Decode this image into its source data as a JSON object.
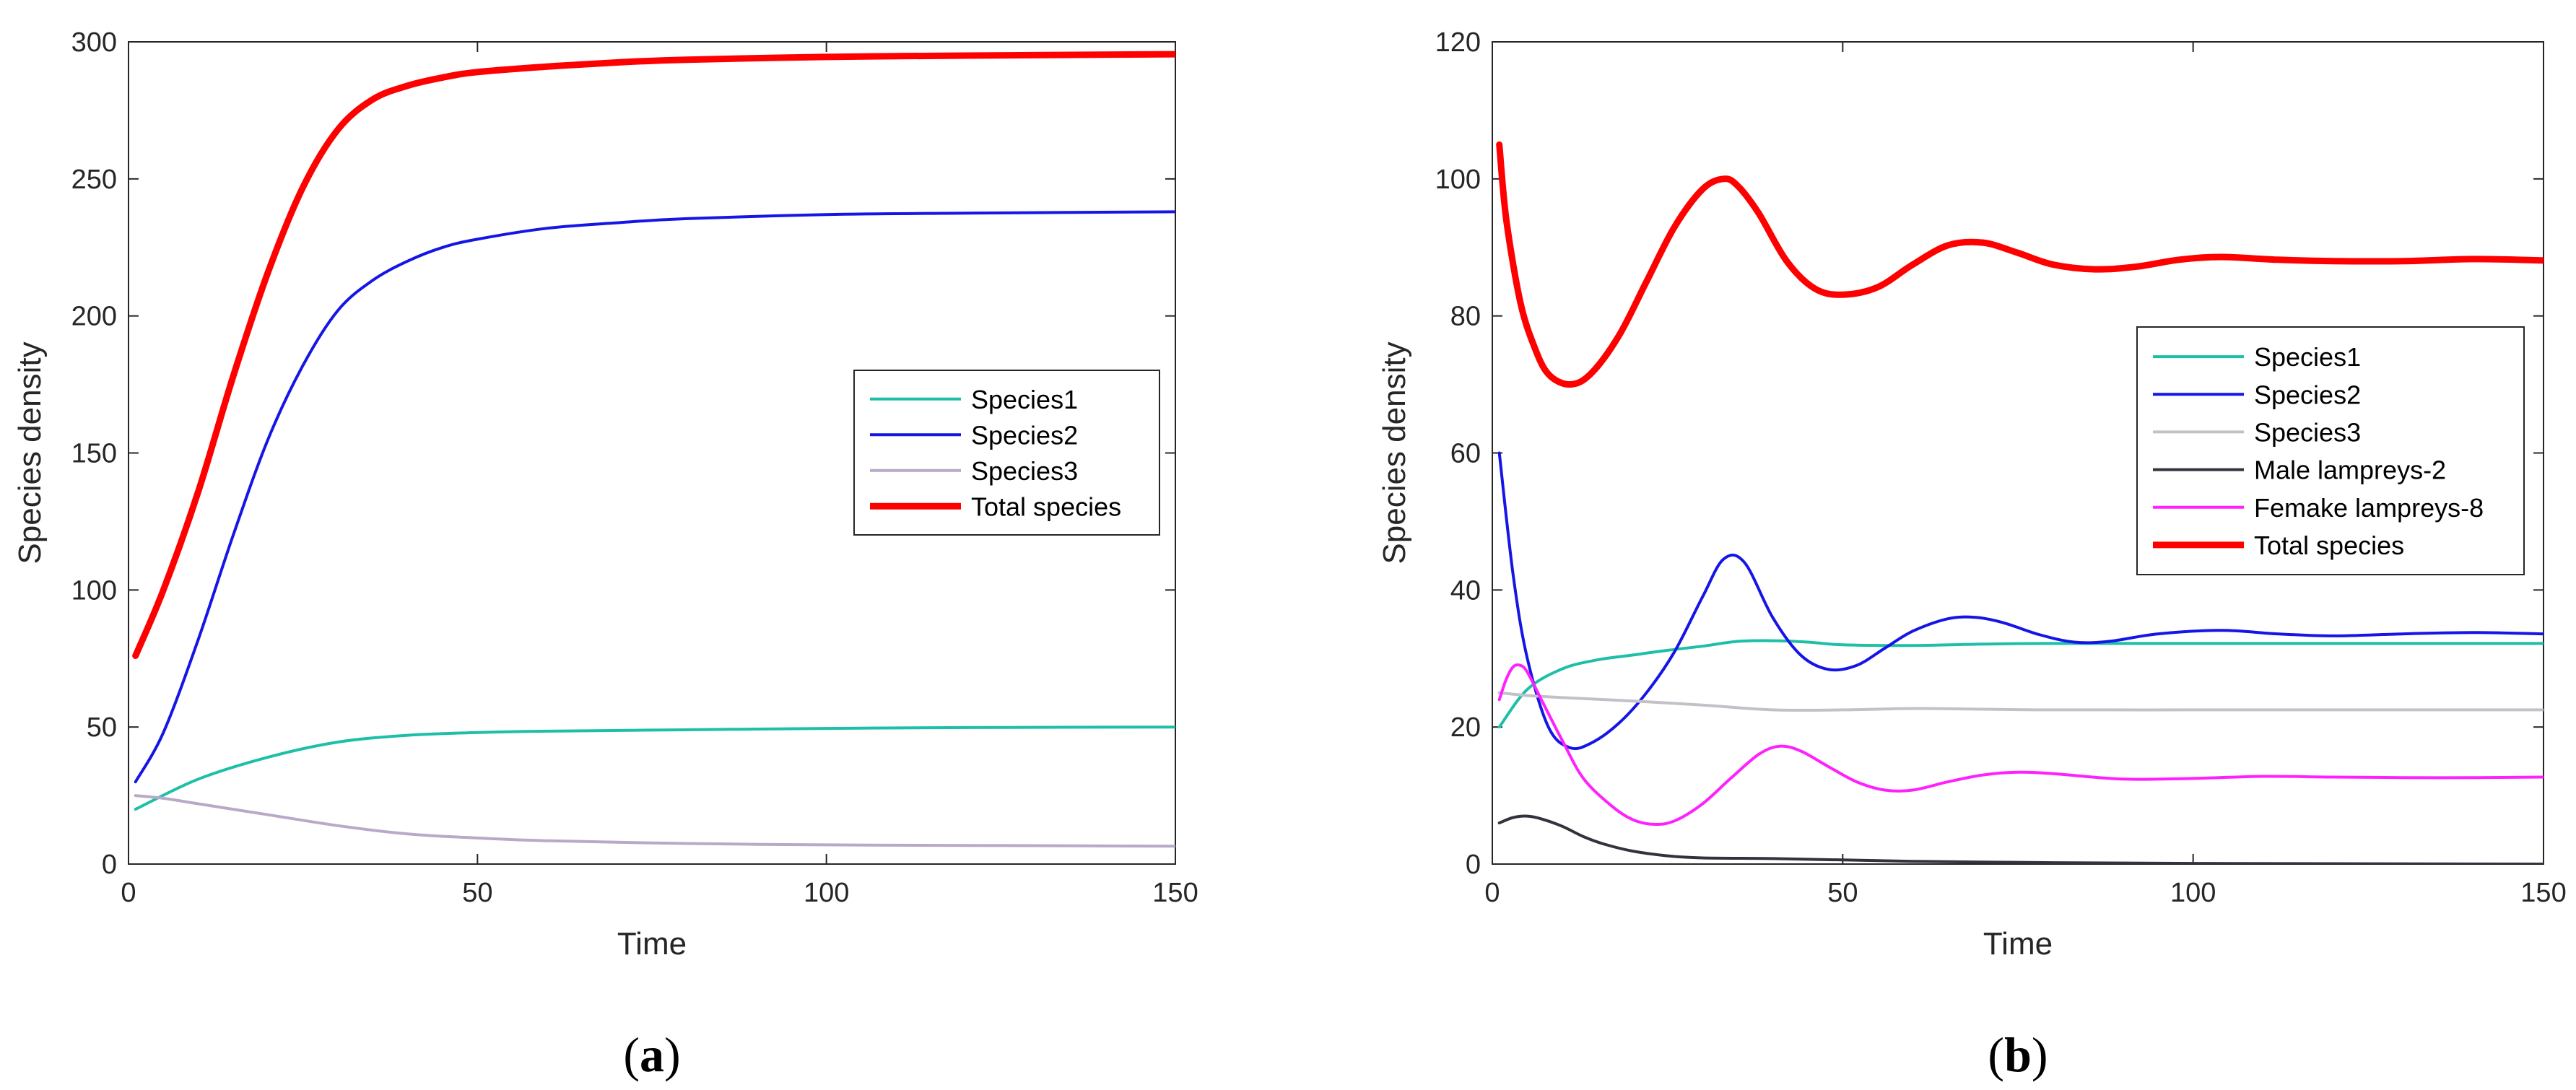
{
  "chart_data": [
    {
      "type": "line",
      "panel": "a",
      "caption": {
        "open": "(",
        "letter": "a",
        "close": ")"
      },
      "xlabel": "Time",
      "ylabel": "Species density",
      "xlim": [
        0,
        150
      ],
      "ylim": [
        0,
        300
      ],
      "xticks": [
        0,
        50,
        100,
        150
      ],
      "yticks": [
        0,
        50,
        100,
        150,
        200,
        250,
        300
      ],
      "legend_position": "right-middle",
      "series": [
        {
          "name": "Species1",
          "color": "#1dbfa8",
          "width": "thin",
          "x": [
            1,
            10,
            20,
            30,
            40,
            50,
            60,
            80,
            100,
            120,
            150
          ],
          "y": [
            20,
            31,
            39,
            44.5,
            47,
            48,
            48.5,
            49,
            49.5,
            49.8,
            50
          ]
        },
        {
          "name": "Species2",
          "color": "#1515e6",
          "width": "thin",
          "x": [
            1,
            5,
            10,
            15,
            20,
            25,
            30,
            35,
            40,
            45,
            50,
            60,
            70,
            80,
            100,
            120,
            150
          ],
          "y": [
            30,
            48,
            82,
            120,
            155,
            182,
            202,
            213,
            220,
            225,
            228,
            232,
            234,
            235.5,
            237,
            237.5,
            238
          ]
        },
        {
          "name": "Species3",
          "color": "#b9a9c9",
          "width": "thin",
          "x": [
            1,
            5,
            10,
            20,
            30,
            40,
            50,
            60,
            80,
            100,
            120,
            150
          ],
          "y": [
            25,
            24,
            22,
            18,
            14,
            11,
            9.5,
            8.5,
            7.5,
            7,
            6.8,
            6.5
          ]
        },
        {
          "name": "Total species",
          "color": "#ff0000",
          "width": "thick",
          "x": [
            1,
            5,
            10,
            15,
            20,
            25,
            30,
            35,
            40,
            45,
            50,
            60,
            70,
            80,
            100,
            120,
            150
          ],
          "y": [
            76,
            100,
            136,
            178,
            216,
            247,
            268,
            279,
            284,
            287,
            289,
            291,
            292.5,
            293.5,
            294.5,
            295,
            295.5
          ]
        }
      ]
    },
    {
      "type": "line",
      "panel": "b",
      "caption": {
        "open": "(",
        "letter": "b",
        "close": ")"
      },
      "xlabel": "Time",
      "ylabel": "Species density",
      "xlim": [
        0,
        150
      ],
      "ylim": [
        0,
        120
      ],
      "xticks": [
        0,
        50,
        100,
        150
      ],
      "yticks": [
        0,
        20,
        40,
        60,
        80,
        100,
        120
      ],
      "legend_position": "right-middle",
      "series": [
        {
          "name": "Species1",
          "color": "#1dbfa8",
          "width": "thin",
          "x": [
            1,
            5,
            10,
            15,
            20,
            25,
            30,
            35,
            40,
            45,
            50,
            60,
            70,
            80,
            100,
            120,
            150
          ],
          "y": [
            20,
            25.5,
            28.5,
            29.8,
            30.5,
            31.2,
            31.8,
            32.5,
            32.6,
            32.4,
            32,
            31.9,
            32.1,
            32.2,
            32.2,
            32.2,
            32.2
          ]
        },
        {
          "name": "Species2",
          "color": "#1515e6",
          "width": "thin",
          "x": [
            1,
            3,
            5,
            8,
            11,
            14,
            18,
            22,
            26,
            30,
            33,
            36,
            40,
            44,
            48,
            52,
            56,
            60,
            65,
            69,
            73,
            78,
            83,
            88,
            95,
            104,
            112,
            120,
            130,
            140,
            150
          ],
          "y": [
            60,
            42,
            30,
            20,
            17,
            17.6,
            20.5,
            25,
            31,
            39,
            44.5,
            44,
            36,
            30.5,
            28.4,
            29,
            31.5,
            34,
            35.8,
            36,
            35.2,
            33.5,
            32.4,
            32.5,
            33.6,
            34.1,
            33.6,
            33.3,
            33.6,
            33.8,
            33.6
          ]
        },
        {
          "name": "Species3",
          "color": "#c4c0c8",
          "width": "thin",
          "x": [
            1,
            5,
            10,
            20,
            30,
            40,
            50,
            60,
            70,
            80,
            100,
            120,
            150
          ],
          "y": [
            25,
            24.6,
            24.3,
            23.8,
            23.2,
            22.5,
            22.5,
            22.7,
            22.6,
            22.5,
            22.5,
            22.5,
            22.5
          ]
        },
        {
          "name": "Male lampreys-2",
          "color": "#333340",
          "width": "thin",
          "x": [
            1,
            3,
            5,
            7,
            10,
            13,
            16,
            20,
            25,
            30,
            40,
            50,
            60,
            70,
            80,
            100,
            120,
            150
          ],
          "y": [
            6,
            6.8,
            7,
            6.6,
            5.5,
            4,
            2.9,
            1.9,
            1.2,
            0.9,
            0.8,
            0.6,
            0.4,
            0.3,
            0.2,
            0.1,
            0.05,
            0
          ]
        },
        {
          "name": "Femake lampreys-8",
          "color": "#ff20ff",
          "width": "thin",
          "x": [
            1,
            2,
            3,
            4,
            5,
            7,
            10,
            13,
            17,
            20,
            23,
            26,
            30,
            34,
            38,
            41,
            44,
            48,
            52,
            56,
            60,
            65,
            70,
            75,
            80,
            90,
            100,
            110,
            120,
            135,
            150
          ],
          "y": [
            24,
            27,
            28.8,
            29,
            28,
            24,
            18,
            12.5,
            8.5,
            6.5,
            5.8,
            6.3,
            8.8,
            12.5,
            16,
            17.2,
            16.5,
            14.2,
            12,
            10.8,
            10.8,
            12,
            13,
            13.4,
            13.2,
            12.4,
            12.5,
            12.8,
            12.7,
            12.6,
            12.7
          ]
        },
        {
          "name": "Total species",
          "color": "#ff0000",
          "width": "thick",
          "x": [
            1,
            2,
            4,
            6,
            8,
            11,
            14,
            18,
            22,
            26,
            30,
            33,
            35,
            38,
            42,
            46,
            50,
            55,
            60,
            65,
            70,
            75,
            80,
            86,
            92,
            98,
            104,
            112,
            120,
            130,
            140,
            150
          ],
          "y": [
            105,
            94,
            82,
            75.5,
            71.5,
            70,
            71.5,
            77,
            85,
            93,
            98.5,
            100,
            99,
            95,
            88,
            84,
            83.1,
            84.2,
            87.5,
            90.3,
            90.7,
            89.2,
            87.5,
            86.8,
            87.2,
            88.2,
            88.6,
            88.2,
            88,
            88,
            88.3,
            88.1
          ]
        }
      ]
    }
  ]
}
